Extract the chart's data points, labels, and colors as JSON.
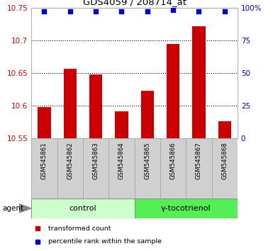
{
  "title": "GDS4059 / 208714_at",
  "samples": [
    "GSM545861",
    "GSM545862",
    "GSM545863",
    "GSM545864",
    "GSM545865",
    "GSM545866",
    "GSM545867",
    "GSM545868"
  ],
  "bar_values": [
    10.597,
    10.656,
    10.648,
    10.591,
    10.622,
    10.694,
    10.721,
    10.576
  ],
  "bar_base": 10.55,
  "percentile_values": [
    97,
    97,
    97,
    97,
    97,
    98,
    97,
    97
  ],
  "bar_color": "#cc0000",
  "dot_color": "#0000cc",
  "ylim_left": [
    10.55,
    10.75
  ],
  "ylim_right": [
    0,
    100
  ],
  "yticks_left": [
    10.55,
    10.6,
    10.65,
    10.7,
    10.75
  ],
  "yticks_right": [
    0,
    25,
    50,
    75,
    100
  ],
  "ytick_labels_left": [
    "10.55",
    "10.6",
    "10.65",
    "10.7",
    "10.75"
  ],
  "ytick_labels_right": [
    "0",
    "25",
    "50",
    "75",
    "100%"
  ],
  "group_labels": [
    "control",
    "γ-tocotrienol"
  ],
  "group_ranges": [
    [
      0,
      4
    ],
    [
      4,
      8
    ]
  ],
  "group_colors_light": "#ccffcc",
  "group_colors_dark": "#55ee55",
  "agent_label": "agent",
  "legend_items": [
    {
      "label": "transformed count",
      "color": "#cc0000"
    },
    {
      "label": "percentile rank within the sample",
      "color": "#0000cc"
    }
  ],
  "plot_bg": "#ffffff",
  "sample_box_color": "#d0d0d0",
  "sample_box_edge": "#aaaaaa"
}
